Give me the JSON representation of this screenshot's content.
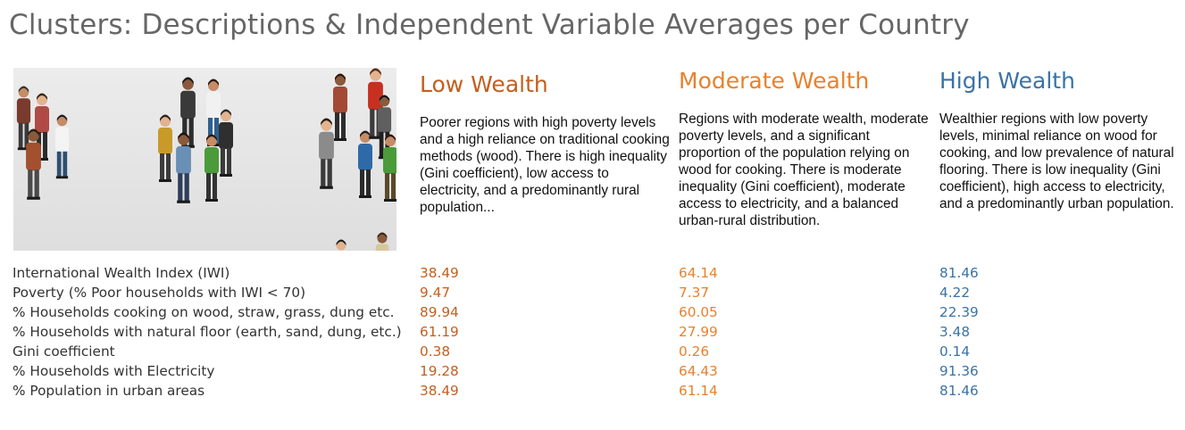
{
  "title": "Clusters: Descriptions & Independent Variable Averages per Country",
  "image": {
    "alt": "crowd of people illustration"
  },
  "clusters": [
    {
      "name": "Low Wealth",
      "color": "#c35f1f",
      "description": "Poorer regions with high poverty levels and a high reliance on traditional cooking methods (wood). There is high inequality (Gini coefficient), low access to electricity, and a predominantly rural population..."
    },
    {
      "name": "Moderate Wealth",
      "color": "#e8812c",
      "description": "Regions with moderate wealth, moderate poverty levels, and a significant proportion of the population relying on wood for cooking. There is moderate inequality (Gini coefficient), moderate access to electricity, and a balanced urban-rural distribution."
    },
    {
      "name": "High Wealth",
      "color": "#3a73a6",
      "description": "Wealthier regions with low poverty levels, minimal reliance on wood for cooking, and low prevalence of natural flooring. There is low inequality (Gini coefficient), high access to electricity, and a predominantly urban population."
    }
  ],
  "variables": [
    {
      "label": "International Wealth Index (IWI)",
      "low": "38.49",
      "moderate": "64.14",
      "high": "81.46"
    },
    {
      "label": "Poverty (% Poor households with IWI < 70)",
      "low": "9.47",
      "moderate": "7.37",
      "high": "4.22"
    },
    {
      "label": "% Households cooking on wood, straw, grass, dung etc.",
      "low": "89.94",
      "moderate": "60.05",
      "high": "22.39"
    },
    {
      "label": "% Households with natural floor (earth, sand, dung, etc.)",
      "low": "61.19",
      "moderate": "27.99",
      "high": "3.48"
    },
    {
      "label": "Gini coefficient",
      "low": "0.38",
      "moderate": "0.26",
      "high": "0.14"
    },
    {
      "label": "% Households with Electricity",
      "low": "19.28",
      "moderate": "64.43",
      "high": "91.36"
    },
    {
      "label": "% Population in urban areas",
      "low": "38.49",
      "moderate": "61.14",
      "high": "81.46"
    }
  ]
}
